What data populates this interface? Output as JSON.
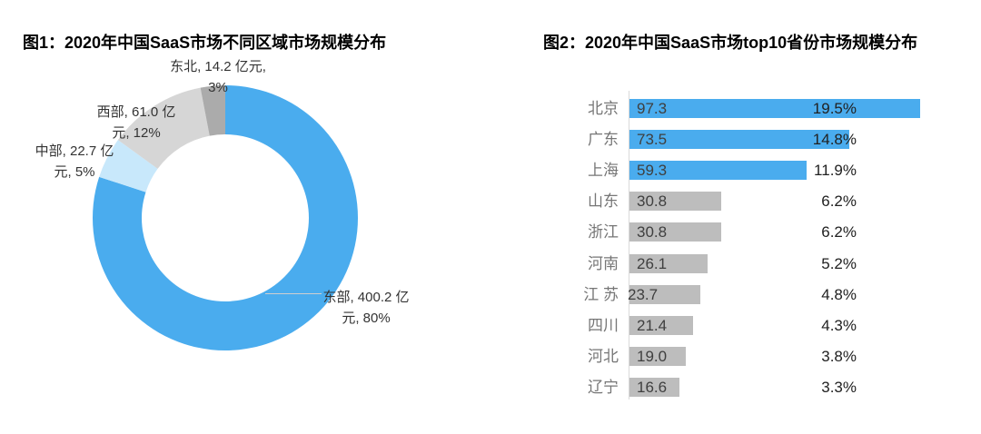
{
  "figures": [
    {
      "id": "fig1",
      "title": "图1：2020年中国SaaS市场不同区域市场规模分布",
      "callouts": [
        {
          "name": "东北",
          "line1": "东北, 14.2 亿元,",
          "line2": "3%"
        },
        {
          "name": "西部",
          "line1": "西部, 61.0 亿",
          "line2": "元, 12%"
        },
        {
          "name": "中部",
          "line1": "中部, 22.7 亿",
          "line2": "元, 5%"
        },
        {
          "name": "东部",
          "line1": "东部, 400.2 亿",
          "line2": "元, 80%"
        }
      ]
    },
    {
      "id": "fig2",
      "title": "图2：2020年中国SaaS市场top10省份市场规模分布"
    }
  ],
  "chart_data": [
    {
      "type": "pie",
      "subtype": "donut",
      "title": "图1：2020年中国SaaS市场不同区域市场规模分布",
      "unit": "亿元",
      "labels": [
        "东部",
        "中部",
        "西部",
        "东北"
      ],
      "values": [
        400.2,
        22.7,
        61.0,
        14.2
      ],
      "percent_values": [
        80,
        5,
        12,
        3
      ],
      "percent_labels": [
        "80%",
        "5%",
        "12%",
        "3%"
      ],
      "colors": [
        "#4aacee",
        "#c8e8fb",
        "#d6d6d6",
        "#ababab"
      ],
      "start_angle_deg": 0,
      "direction": "clockwise",
      "inner_radius_ratio": 0.63,
      "legend": "none"
    },
    {
      "type": "bar",
      "orientation": "horizontal",
      "title": "图2：2020年中国SaaS市场top10省份市场规模分布",
      "unit": "亿元",
      "categories": [
        "北京",
        "广东",
        "上海",
        "山东",
        "浙江",
        "河南",
        "江 苏",
        "四川",
        "河北",
        "辽宁"
      ],
      "values": [
        97.3,
        73.5,
        59.3,
        30.8,
        30.8,
        26.1,
        23.7,
        21.4,
        19.0,
        16.6
      ],
      "value_labels": [
        "97.3",
        "73.5",
        "59.3",
        "30.8",
        "30.8",
        "26.1",
        "23.7",
        "21.4",
        "19.0",
        "16.6"
      ],
      "percent_labels": [
        "19.5%",
        "14.8%",
        "11.9%",
        "6.2%",
        "6.2%",
        "5.2%",
        "4.8%",
        "4.3%",
        "3.8%",
        "3.3%"
      ],
      "bar_colors": [
        "#4aacee",
        "#4aacee",
        "#4aacee",
        "#bdbdbd",
        "#bdbdbd",
        "#bdbdbd",
        "#bdbdbd",
        "#bdbdbd",
        "#bdbdbd",
        "#bdbdbd"
      ],
      "value_label_dx": [
        0,
        0,
        0,
        0,
        0,
        0,
        -10,
        0,
        0,
        0
      ],
      "xlim": [
        0,
        100
      ],
      "grid": "off",
      "axis_baseline": "left"
    }
  ],
  "colors": {
    "accent_blue": "#4aacee",
    "light_blue": "#c8e8fb",
    "slice_light_gray": "#d6d6d6",
    "slice_dark_gray": "#ababab",
    "bar_gray": "#bdbdbd",
    "title_text": "#000000",
    "category_text": "#767676",
    "value_text": "#3f3f3f",
    "percent_text": "#212121",
    "axis_line": "#d9d9d9",
    "background": "#ffffff"
  }
}
